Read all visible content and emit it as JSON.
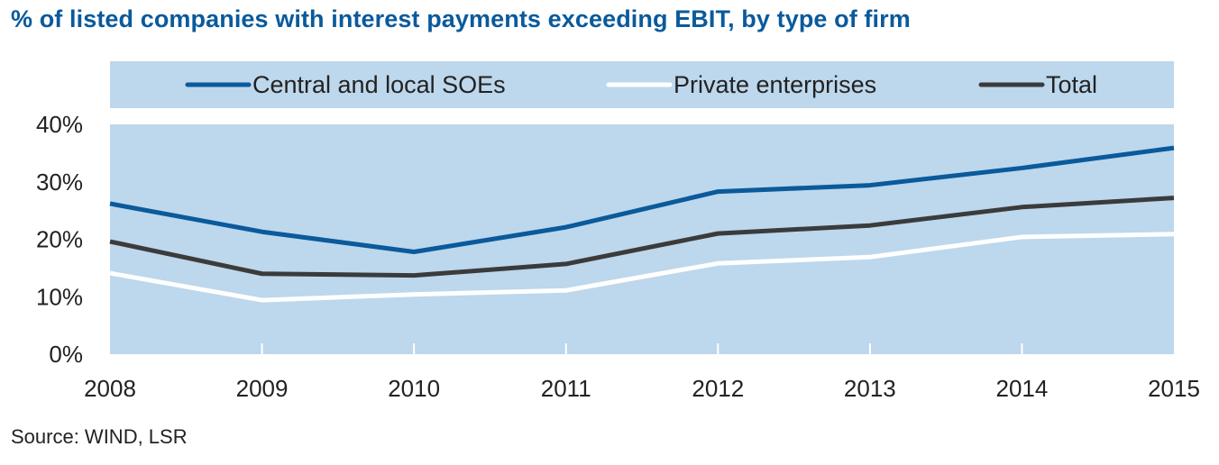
{
  "title": "% of listed companies with interest payments exceeding EBIT, by type of firm",
  "source": "Source: WIND, LSR",
  "colors": {
    "background": "#bdd7ec",
    "soe": "#0a5a9c",
    "private": "#ffffff",
    "total": "#3b3b3b"
  },
  "chart_data": {
    "type": "line",
    "title": "% of listed companies with interest payments exceeding EBIT, by type of firm",
    "xlabel": "",
    "ylabel": "",
    "x": [
      "2008",
      "2009",
      "2010",
      "2011",
      "2012",
      "2013",
      "2014",
      "2015"
    ],
    "ylim": [
      0,
      40
    ],
    "yticks": [
      0,
      10,
      20,
      30,
      40
    ],
    "ytick_labels": [
      "0%",
      "10%",
      "20%",
      "30%",
      "40%"
    ],
    "legend_position": "top",
    "series": [
      {
        "name": "Central and local SOEs",
        "key": "soe",
        "values": [
          26.2,
          21.3,
          17.8,
          22.1,
          28.3,
          29.4,
          32.4,
          35.9
        ]
      },
      {
        "name": "Private enterprises",
        "key": "private",
        "values": [
          14.1,
          9.4,
          10.4,
          11.1,
          15.8,
          16.9,
          20.4,
          20.9
        ]
      },
      {
        "name": "Total",
        "key": "total",
        "values": [
          19.6,
          14.0,
          13.7,
          15.7,
          21.0,
          22.4,
          25.6,
          27.2
        ]
      }
    ]
  }
}
